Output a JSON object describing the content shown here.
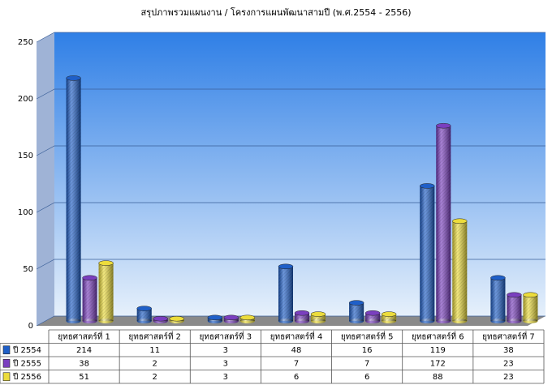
{
  "chart_data": {
    "type": "bar3d",
    "title": "สรุปภาพรวมแผนงาน / โครงการแผนพัฒนาสามปี (พ.ศ.2554 - 2556)",
    "categories": [
      "ยุทธศาสตร์ที่ 1",
      "ยุทธศาสตร์ที่ 2",
      "ยุทธศาสตร์ที่ 3",
      "ยุทธศาสตร์ที่ 4",
      "ยุทธศาสตร์ที่ 5",
      "ยุทธศาสตร์ที่ 6",
      "ยุทธศาสตร์ที่ 7"
    ],
    "series": [
      {
        "name": "ปี 2554",
        "color": "#1f5fc8",
        "values": [
          214,
          11,
          3,
          48,
          16,
          119,
          38
        ]
      },
      {
        "name": "ปี 2555",
        "color": "#7a3fbf",
        "values": [
          38,
          2,
          3,
          7,
          7,
          172,
          23
        ]
      },
      {
        "name": "ปี 2556",
        "color": "#ecdc3c",
        "values": [
          51,
          2,
          3,
          6,
          6,
          88,
          23
        ]
      }
    ],
    "ylim": [
      0,
      250
    ],
    "yticks": [
      0,
      50,
      100,
      150,
      200,
      250
    ],
    "grid": true
  }
}
